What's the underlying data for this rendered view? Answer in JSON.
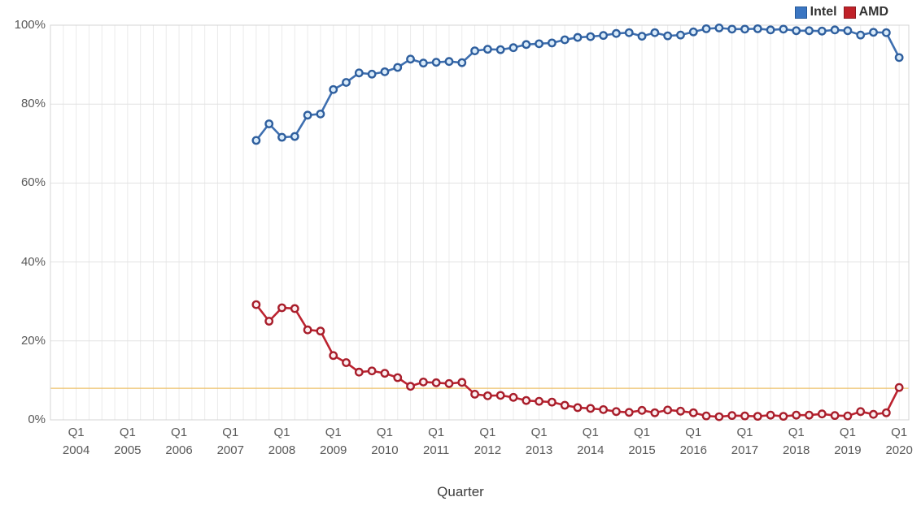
{
  "chart_data": {
    "type": "line",
    "title": "",
    "xlabel": "Quarter",
    "ylabel": "",
    "ylim": [
      0,
      100
    ],
    "grid": true,
    "legend_position": "top-right",
    "y_ticks": [
      "0%",
      "20%",
      "40%",
      "60%",
      "80%",
      "100%"
    ],
    "x_ticks": [
      {
        "quarter": "Q1",
        "year": "2004"
      },
      {
        "quarter": "Q1",
        "year": "2005"
      },
      {
        "quarter": "Q1",
        "year": "2006"
      },
      {
        "quarter": "Q1",
        "year": "2007"
      },
      {
        "quarter": "Q1",
        "year": "2008"
      },
      {
        "quarter": "Q1",
        "year": "2009"
      },
      {
        "quarter": "Q1",
        "year": "2010"
      },
      {
        "quarter": "Q1",
        "year": "2011"
      },
      {
        "quarter": "Q1",
        "year": "2012"
      },
      {
        "quarter": "Q1",
        "year": "2013"
      },
      {
        "quarter": "Q1",
        "year": "2014"
      },
      {
        "quarter": "Q1",
        "year": "2015"
      },
      {
        "quarter": "Q1",
        "year": "2016"
      },
      {
        "quarter": "Q1",
        "year": "2017"
      },
      {
        "quarter": "Q1",
        "year": "2018"
      },
      {
        "quarter": "Q1",
        "year": "2019"
      },
      {
        "quarter": "Q1",
        "year": "2020"
      }
    ],
    "x_start_year": 2004,
    "x": [
      "2007 Q3",
      "2007 Q4",
      "2008 Q1",
      "2008 Q2",
      "2008 Q3",
      "2008 Q4",
      "2009 Q1",
      "2009 Q2",
      "2009 Q3",
      "2009 Q4",
      "2010 Q1",
      "2010 Q2",
      "2010 Q3",
      "2010 Q4",
      "2011 Q1",
      "2011 Q2",
      "2011 Q3",
      "2011 Q4",
      "2012 Q1",
      "2012 Q2",
      "2012 Q3",
      "2012 Q4",
      "2013 Q1",
      "2013 Q2",
      "2013 Q3",
      "2013 Q4",
      "2014 Q1",
      "2014 Q2",
      "2014 Q3",
      "2014 Q4",
      "2015 Q1",
      "2015 Q2",
      "2015 Q3",
      "2015 Q4",
      "2016 Q1",
      "2016 Q2",
      "2016 Q3",
      "2016 Q4",
      "2017 Q1",
      "2017 Q2",
      "2017 Q3",
      "2017 Q4",
      "2018 Q1",
      "2018 Q2",
      "2018 Q3",
      "2018 Q4",
      "2019 Q1",
      "2019 Q2",
      "2019 Q3",
      "2019 Q4",
      "2020 Q1"
    ],
    "series": [
      {
        "name": "Intel",
        "line_color": "#3e6fb0",
        "marker_ring": "#2f5f9e",
        "marker_fill": "#d9ebfa",
        "values": [
          70.8,
          75.0,
          71.6,
          71.8,
          77.2,
          77.5,
          83.7,
          85.5,
          87.9,
          87.6,
          88.2,
          89.3,
          91.4,
          90.4,
          90.6,
          90.8,
          90.5,
          93.5,
          93.9,
          93.8,
          94.3,
          95.1,
          95.3,
          95.5,
          96.3,
          96.9,
          97.1,
          97.4,
          97.9,
          98.1,
          97.2,
          98.1,
          97.3,
          97.5,
          98.3,
          99.1,
          99.3,
          99.0,
          99.0,
          99.1,
          98.8,
          99.0,
          98.6,
          98.6,
          98.5,
          98.8,
          98.6,
          97.5,
          98.2,
          98.1,
          91.8
        ]
      },
      {
        "name": "AMD",
        "line_color": "#bc2330",
        "marker_ring": "#a81e2b",
        "marker_fill": "#fbeef0",
        "values": [
          29.2,
          25.0,
          28.4,
          28.2,
          22.8,
          22.5,
          16.3,
          14.5,
          12.1,
          12.4,
          11.8,
          10.7,
          8.5,
          9.6,
          9.4,
          9.2,
          9.5,
          6.5,
          6.1,
          6.2,
          5.7,
          4.9,
          4.7,
          4.5,
          3.7,
          3.1,
          2.9,
          2.6,
          2.1,
          1.9,
          2.4,
          1.8,
          2.5,
          2.2,
          1.8,
          1.0,
          0.8,
          1.1,
          1.0,
          0.9,
          1.2,
          0.9,
          1.2,
          1.2,
          1.5,
          1.1,
          1.0,
          2.1,
          1.4,
          1.8,
          8.2
        ]
      }
    ],
    "reference_line": {
      "value": 8,
      "color": "#eec06a"
    },
    "colors": {
      "grid_vertical": "#ebebeb",
      "grid_horizontal": "#e2e2e2",
      "plot_border": "#d4d4d4"
    }
  },
  "legend": {
    "items": [
      {
        "label": "Intel",
        "fill": "#3b76c2",
        "border": "#265a9a"
      },
      {
        "label": "AMD",
        "fill": "#c02128",
        "border": "#8e1a20"
      }
    ]
  }
}
